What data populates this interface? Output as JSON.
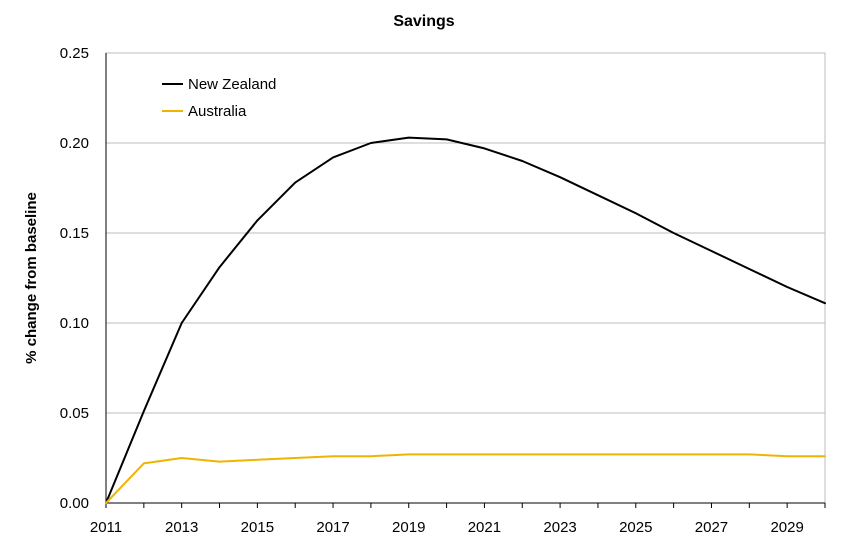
{
  "chart_data": {
    "type": "line",
    "title": "Savings",
    "xlabel": "",
    "ylabel": "% change from baseline",
    "x": [
      2011,
      2012,
      2013,
      2014,
      2015,
      2016,
      2017,
      2018,
      2019,
      2020,
      2021,
      2022,
      2023,
      2024,
      2025,
      2026,
      2027,
      2028,
      2029,
      2030
    ],
    "xlim": [
      2011,
      2030
    ],
    "ylim": [
      0,
      0.25
    ],
    "x_tick_labels": [
      "2011",
      "2013",
      "2015",
      "2017",
      "2019",
      "2021",
      "2023",
      "2025",
      "2027",
      "2029"
    ],
    "y_tick_labels": [
      "0.00",
      "0.05",
      "0.10",
      "0.15",
      "0.20",
      "0.25"
    ],
    "grid": "horizontal",
    "legend_position": "top-left",
    "series": [
      {
        "name": "New Zealand",
        "color": "#000000",
        "values": [
          0.0,
          0.051,
          0.1,
          0.131,
          0.157,
          0.178,
          0.192,
          0.2,
          0.203,
          0.202,
          0.197,
          0.19,
          0.181,
          0.171,
          0.161,
          0.15,
          0.14,
          0.13,
          0.12,
          0.111
        ]
      },
      {
        "name": "Australia",
        "color": "#f0b400",
        "values": [
          0.0,
          0.022,
          0.025,
          0.023,
          0.024,
          0.025,
          0.026,
          0.026,
          0.027,
          0.027,
          0.027,
          0.027,
          0.027,
          0.027,
          0.027,
          0.027,
          0.027,
          0.027,
          0.026,
          0.026
        ]
      }
    ]
  }
}
